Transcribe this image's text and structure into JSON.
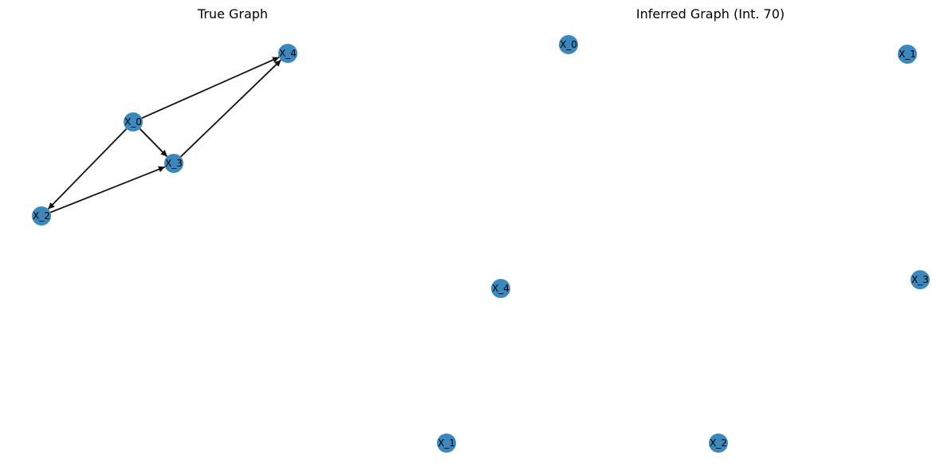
{
  "panels": {
    "left": {
      "title": "True Graph",
      "nodes": [
        {
          "id": "X_0",
          "label": "X_0"
        },
        {
          "id": "X_2",
          "label": "X_2"
        },
        {
          "id": "X_3",
          "label": "X_3"
        },
        {
          "id": "X_4",
          "label": "X_4"
        }
      ],
      "edges": [
        {
          "from": "X_0",
          "to": "X_4"
        },
        {
          "from": "X_0",
          "to": "X_3"
        },
        {
          "from": "X_0",
          "to": "X_2"
        },
        {
          "from": "X_3",
          "to": "X_4"
        },
        {
          "from": "X_2",
          "to": "X_3"
        }
      ]
    },
    "right": {
      "title": "Inferred Graph (Int. 70)",
      "nodes": [
        {
          "id": "X_0",
          "label": "X_0"
        },
        {
          "id": "X_1",
          "label": "X_1"
        },
        {
          "id": "X_4",
          "label": "X_4"
        },
        {
          "id": "X_3",
          "label": "X_3"
        },
        {
          "id": "X_1b",
          "label": "X_1"
        },
        {
          "id": "X_2",
          "label": "X_2"
        }
      ],
      "edges": []
    }
  },
  "colors": {
    "node": "#3282b8",
    "edge": "#111111"
  }
}
